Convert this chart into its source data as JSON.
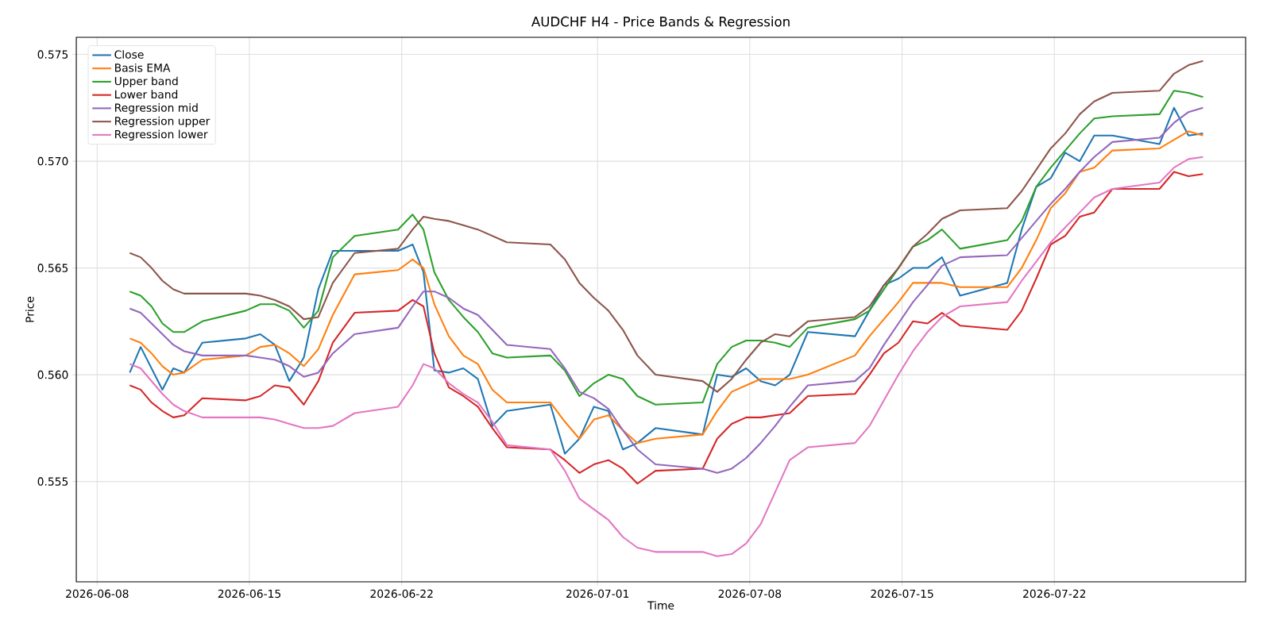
{
  "chart_data": {
    "type": "line",
    "title": "AUDCHF H4 - Price Bands & Regression",
    "xlabel": "Time",
    "ylabel": "Price",
    "x": [
      "2026-06-09T12:00",
      "2026-06-10T00:00",
      "2026-06-10T12:00",
      "2026-06-11T00:00",
      "2026-06-11T12:00",
      "2026-06-12T00:00",
      "2026-06-12T20:00",
      "2026-06-14T20:00",
      "2026-06-15T12:00",
      "2026-06-16T04:00",
      "2026-06-16T20:00",
      "2026-06-17T12:00",
      "2026-06-18T04:00",
      "2026-06-18T20:00",
      "2026-06-19T20:00",
      "2026-06-21T20:00",
      "2026-06-22T12:00",
      "2026-06-23T00:00",
      "2026-06-23T12:00",
      "2026-06-24T04:00",
      "2026-06-24T20:00",
      "2026-06-25T12:00",
      "2026-06-26T04:00",
      "2026-06-26T20:00",
      "2026-06-28T20:00",
      "2026-06-29T12:00",
      "2026-06-30T04:00",
      "2026-06-30T20:00",
      "2026-07-01T12:00",
      "2026-07-02T04:00",
      "2026-07-02T20:00",
      "2026-07-03T16:00",
      "2026-07-05T20:00",
      "2026-07-06T12:00",
      "2026-07-07T04:00",
      "2026-07-07T20:00",
      "2026-07-08T12:00",
      "2026-07-09T04:00",
      "2026-07-09T20:00",
      "2026-07-10T16:00",
      "2026-07-12T20:00",
      "2026-07-13T12:00",
      "2026-07-14T04:00",
      "2026-07-14T20:00",
      "2026-07-15T12:00",
      "2026-07-16T04:00",
      "2026-07-16T20:00",
      "2026-07-17T16:00",
      "2026-07-19T20:00",
      "2026-07-20T12:00",
      "2026-07-21T04:00",
      "2026-07-21T20:00",
      "2026-07-22T12:00",
      "2026-07-23T04:00",
      "2026-07-23T20:00",
      "2026-07-24T16:00",
      "2026-07-26T20:00",
      "2026-07-27T12:00",
      "2026-07-28T04:00",
      "2026-07-28T20:00"
    ],
    "series": [
      {
        "name": "Close",
        "color": "#1f77b4",
        "values": [
          0.5601,
          0.5613,
          0.5603,
          0.5593,
          0.5603,
          0.5601,
          0.5615,
          0.5617,
          0.5619,
          0.5614,
          0.5597,
          0.5608,
          0.564,
          0.5658,
          0.5658,
          0.5658,
          0.5661,
          0.5648,
          0.5602,
          0.5601,
          0.5603,
          0.5598,
          0.5576,
          0.5583,
          0.5586,
          0.5563,
          0.557,
          0.5585,
          0.5583,
          0.5565,
          0.5568,
          0.5575,
          0.5572,
          0.56,
          0.5599,
          0.5603,
          0.5597,
          0.5595,
          0.56,
          0.562,
          0.5618,
          0.563,
          0.5642,
          0.5645,
          0.565,
          0.565,
          0.5655,
          0.5637,
          0.5643,
          0.5668,
          0.5688,
          0.5692,
          0.5704,
          0.57,
          0.5712,
          0.5712,
          0.5708,
          0.5725,
          0.5712,
          0.5713
        ]
      },
      {
        "name": "Basis EMA",
        "color": "#ff7f0e",
        "values": [
          0.5617,
          0.5615,
          0.561,
          0.5604,
          0.56,
          0.5601,
          0.5607,
          0.5609,
          0.5613,
          0.5614,
          0.561,
          0.5604,
          0.5612,
          0.5628,
          0.5647,
          0.5649,
          0.5654,
          0.565,
          0.5633,
          0.5618,
          0.5609,
          0.5605,
          0.5593,
          0.5587,
          0.5587,
          0.5578,
          0.557,
          0.5579,
          0.5581,
          0.5574,
          0.5568,
          0.557,
          0.5572,
          0.5583,
          0.5592,
          0.5595,
          0.5598,
          0.5598,
          0.5598,
          0.56,
          0.5609,
          0.5618,
          0.5626,
          0.5634,
          0.5643,
          0.5643,
          0.5643,
          0.5641,
          0.5641,
          0.565,
          0.5663,
          0.5678,
          0.5685,
          0.5695,
          0.5697,
          0.5705,
          0.5706,
          0.571,
          0.5714,
          0.5712
        ]
      },
      {
        "name": "Upper band",
        "color": "#2ca02c",
        "values": [
          0.5639,
          0.5637,
          0.5632,
          0.5624,
          0.562,
          0.562,
          0.5625,
          0.563,
          0.5633,
          0.5633,
          0.563,
          0.5622,
          0.563,
          0.5655,
          0.5665,
          0.5668,
          0.5675,
          0.5668,
          0.5648,
          0.5635,
          0.5627,
          0.562,
          0.561,
          0.5608,
          0.5609,
          0.5602,
          0.559,
          0.5596,
          0.56,
          0.5598,
          0.559,
          0.5586,
          0.5587,
          0.5605,
          0.5613,
          0.5616,
          0.5616,
          0.5615,
          0.5613,
          0.5622,
          0.5626,
          0.563,
          0.564,
          0.565,
          0.566,
          0.5663,
          0.5668,
          0.5659,
          0.5663,
          0.5672,
          0.5688,
          0.5697,
          0.5705,
          0.5713,
          0.572,
          0.5721,
          0.5722,
          0.5733,
          0.5732,
          0.573
        ]
      },
      {
        "name": "Lower band",
        "color": "#d62728",
        "values": [
          0.5595,
          0.5593,
          0.5587,
          0.5583,
          0.558,
          0.5581,
          0.5589,
          0.5588,
          0.559,
          0.5595,
          0.5594,
          0.5586,
          0.5597,
          0.5615,
          0.5629,
          0.563,
          0.5635,
          0.5632,
          0.561,
          0.5594,
          0.559,
          0.5585,
          0.5575,
          0.5566,
          0.5565,
          0.556,
          0.5554,
          0.5558,
          0.556,
          0.5556,
          0.5549,
          0.5555,
          0.5556,
          0.557,
          0.5577,
          0.558,
          0.558,
          0.5581,
          0.5582,
          0.559,
          0.5591,
          0.56,
          0.561,
          0.5615,
          0.5625,
          0.5624,
          0.5629,
          0.5623,
          0.5621,
          0.563,
          0.5645,
          0.5661,
          0.5665,
          0.5674,
          0.5676,
          0.5687,
          0.5687,
          0.5695,
          0.5693,
          0.5694
        ]
      },
      {
        "name": "Regression mid",
        "color": "#9467bd",
        "values": [
          0.5631,
          0.5629,
          0.5624,
          0.5619,
          0.5614,
          0.5611,
          0.5609,
          0.5609,
          0.5608,
          0.5607,
          0.5604,
          0.5599,
          0.5601,
          0.561,
          0.5619,
          0.5622,
          0.5632,
          0.5639,
          0.5639,
          0.5636,
          0.5631,
          0.5628,
          0.5621,
          0.5614,
          0.5612,
          0.5603,
          0.5592,
          0.5589,
          0.5584,
          0.5574,
          0.5565,
          0.5558,
          0.5556,
          0.5554,
          0.5556,
          0.5561,
          0.5568,
          0.5576,
          0.5585,
          0.5595,
          0.5597,
          0.5603,
          0.5614,
          0.5624,
          0.5634,
          0.5642,
          0.5651,
          0.5655,
          0.5656,
          0.5664,
          0.5672,
          0.568,
          0.5687,
          0.5695,
          0.5702,
          0.5709,
          0.5711,
          0.5718,
          0.5723,
          0.5725
        ]
      },
      {
        "name": "Regression upper",
        "color": "#8c564b",
        "values": [
          0.5657,
          0.5655,
          0.565,
          0.5644,
          0.564,
          0.5638,
          0.5638,
          0.5638,
          0.5637,
          0.5635,
          0.5632,
          0.5626,
          0.5627,
          0.5643,
          0.5657,
          0.5659,
          0.5668,
          0.5674,
          0.5673,
          0.5672,
          0.567,
          0.5668,
          0.5665,
          0.5662,
          0.5661,
          0.5654,
          0.5643,
          0.5636,
          0.563,
          0.5621,
          0.5609,
          0.56,
          0.5597,
          0.5592,
          0.5598,
          0.5607,
          0.5615,
          0.5619,
          0.5618,
          0.5625,
          0.5627,
          0.5632,
          0.5642,
          0.565,
          0.566,
          0.5666,
          0.5673,
          0.5677,
          0.5678,
          0.5686,
          0.5696,
          0.5706,
          0.5713,
          0.5722,
          0.5728,
          0.5732,
          0.5733,
          0.5741,
          0.5745,
          0.5747
        ]
      },
      {
        "name": "Regression lower",
        "color": "#e377c2",
        "values": [
          0.5605,
          0.5603,
          0.5597,
          0.5591,
          0.5586,
          0.5583,
          0.558,
          0.558,
          0.558,
          0.5579,
          0.5577,
          0.5575,
          0.5575,
          0.5576,
          0.5582,
          0.5585,
          0.5595,
          0.5605,
          0.5603,
          0.5596,
          0.5591,
          0.5587,
          0.5578,
          0.5567,
          0.5565,
          0.5555,
          0.5542,
          0.5537,
          0.5532,
          0.5524,
          0.5519,
          0.5517,
          0.5517,
          0.5515,
          0.5516,
          0.5521,
          0.553,
          0.5545,
          0.556,
          0.5566,
          0.5568,
          0.5576,
          0.5588,
          0.56,
          0.5611,
          0.562,
          0.5627,
          0.5632,
          0.5634,
          0.5644,
          0.5653,
          0.5662,
          0.5669,
          0.5676,
          0.5683,
          0.5687,
          0.569,
          0.5697,
          0.5701,
          0.5702
        ]
      }
    ],
    "xlim": [
      "2026-06-07T01:00",
      "2026-07-30T19:00"
    ],
    "xticks": [
      "2026-06-08",
      "2026-06-15",
      "2026-06-22",
      "2026-07-01",
      "2026-07-08",
      "2026-07-15",
      "2026-07-22"
    ],
    "ylim": [
      0.5503,
      0.5758
    ],
    "yticks": [
      0.555,
      {
        "value": 0.56,
        "label": "0.560"
      },
      0.565,
      {
        "value": 0.57,
        "label": "0.570"
      },
      0.575
    ],
    "grid": true,
    "legend": "top left"
  }
}
